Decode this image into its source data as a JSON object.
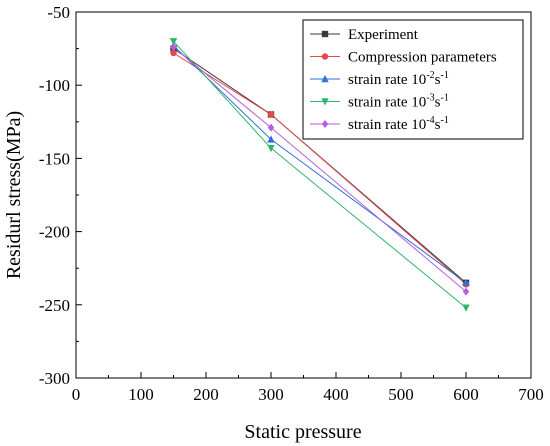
{
  "chart_data": {
    "type": "line",
    "xlabel": "Static pressure",
    "ylabel": "Residurl stress(MPa)",
    "xlim": [
      0,
      700
    ],
    "ylim": [
      -300,
      -50
    ],
    "x_ticks": [
      0,
      100,
      200,
      300,
      400,
      500,
      600,
      700
    ],
    "y_ticks": [
      -300,
      -250,
      -200,
      -150,
      -100,
      -50
    ],
    "x_tick_labels": [
      "0",
      "100",
      "200",
      "300",
      "400",
      "500",
      "600",
      "700"
    ],
    "y_tick_labels": [
      "-300",
      "-250",
      "-200",
      "-150",
      "-100",
      "-50"
    ],
    "grid": false,
    "legend_position": "top-right",
    "series": [
      {
        "name": "Experiment",
        "legend": {
          "base": "Experiment",
          "sup": "",
          "tail": ""
        },
        "marker": "square",
        "color": "#3a3a3a",
        "x": [
          150,
          300,
          600
        ],
        "y": [
          -75,
          -120,
          -235
        ]
      },
      {
        "name": "Compression parameters",
        "legend": {
          "base": "Compression parameters",
          "sup": "",
          "tail": ""
        },
        "marker": "circle",
        "color": "#e8474f",
        "x": [
          150,
          300,
          600
        ],
        "y": [
          -78,
          -120,
          -236
        ]
      },
      {
        "name": "strain rate 10-2s-1",
        "legend": {
          "base": "strain rate 10",
          "sup": "-2",
          "tail": "s",
          "sup2": "-1"
        },
        "marker": "triangle-up",
        "color": "#2f6fd6",
        "x": [
          150,
          300,
          600
        ],
        "y": [
          -73,
          -137,
          -235
        ]
      },
      {
        "name": "strain rate 10-3s-1",
        "legend": {
          "base": "strain rate 10",
          "sup": "-3",
          "tail": "s",
          "sup2": "-1"
        },
        "marker": "triangle-down",
        "color": "#2fb56a",
        "x": [
          150,
          300,
          600
        ],
        "y": [
          -70,
          -143,
          -252
        ]
      },
      {
        "name": "strain rate 10-4s-1",
        "legend": {
          "base": "strain rate 10",
          "sup": "-4",
          "tail": "s",
          "sup2": "-1"
        },
        "marker": "diamond",
        "color": "#b45ee0",
        "x": [
          150,
          300,
          600
        ],
        "y": [
          -74,
          -129,
          -241
        ]
      }
    ]
  }
}
